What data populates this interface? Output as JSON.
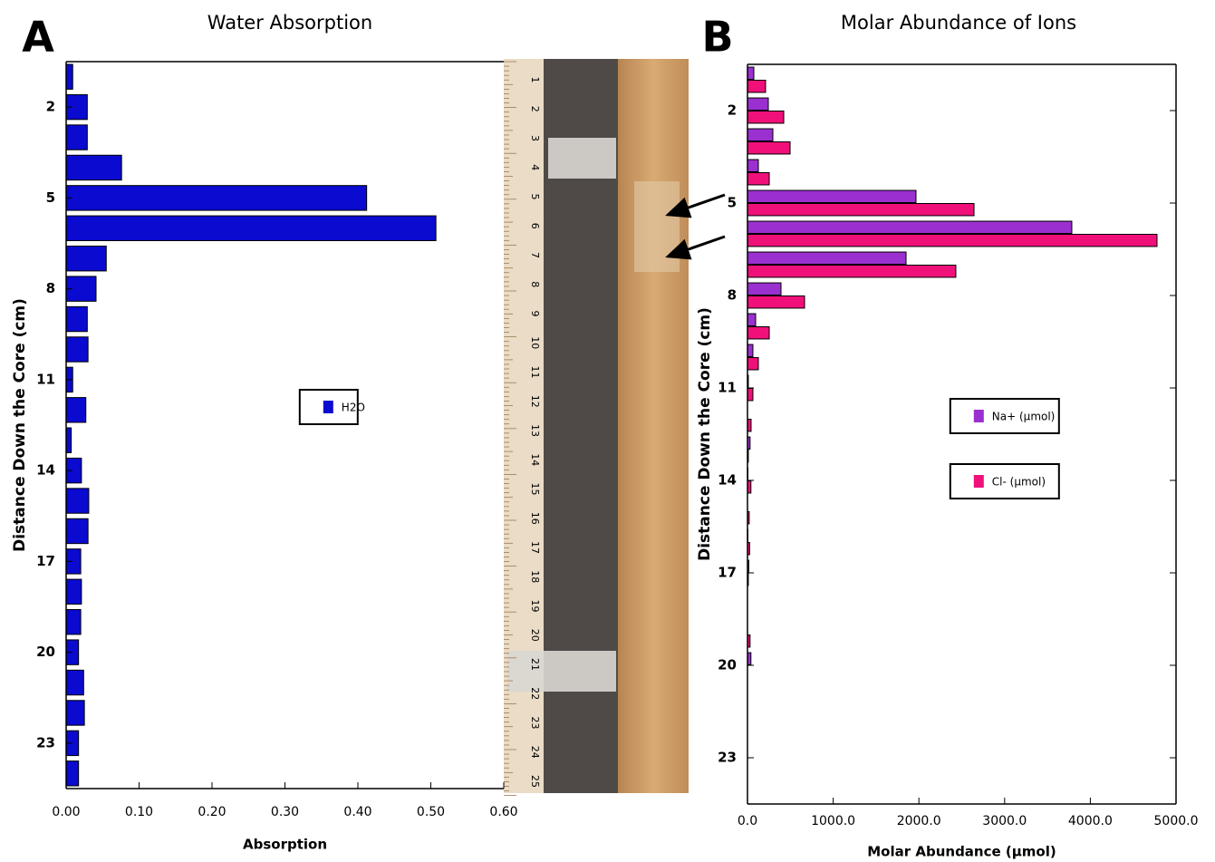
{
  "chart_data": [
    {
      "type": "barh",
      "panel_label": "A",
      "title": "Water Absorption",
      "x_label": "Absorption",
      "y_label": "Distance Down the Core (cm)",
      "y": [
        1,
        2,
        3,
        4,
        5,
        6,
        7,
        8,
        9,
        10,
        11,
        12,
        13,
        14,
        15,
        16,
        17,
        18,
        19,
        20,
        21,
        22,
        23,
        24
      ],
      "series": [
        {
          "name": "H2O",
          "color": "#0a0ad0",
          "values": [
            0.009,
            0.029,
            0.029,
            0.076,
            0.412,
            0.507,
            0.055,
            0.041,
            0.029,
            0.03,
            0.009,
            0.027,
            0.007,
            0.021,
            0.031,
            0.03,
            0.02,
            0.021,
            0.02,
            0.017,
            0.024,
            0.025,
            0.017,
            0.017
          ]
        }
      ],
      "xlim": [
        0,
        0.6
      ],
      "xticks": [
        {
          "value": 0,
          "label": "0.00"
        },
        {
          "value": 0.1,
          "label": "0.10"
        },
        {
          "value": 0.2,
          "label": "0.20"
        },
        {
          "value": 0.3,
          "label": "0.30"
        },
        {
          "value": 0.4,
          "label": "0.40"
        },
        {
          "value": 0.5,
          "label": "0.50"
        },
        {
          "value": 0.6,
          "label": "0.60"
        }
      ],
      "ylim": [
        0.5,
        24.5
      ],
      "y_inverted": true,
      "yticks": [
        2,
        5,
        8,
        11,
        14,
        17,
        20,
        23
      ],
      "grid": false,
      "legend_position": "center"
    },
    {
      "type": "barh",
      "panel_label": "B",
      "title": "Molar Abundance of Ions",
      "x_label": "Molar Abundance (µmol)",
      "y_label": "Distance Down the Core (cm)",
      "y": [
        1,
        2,
        3,
        4,
        5,
        6,
        7,
        8,
        9,
        10,
        11,
        12,
        13,
        14,
        15,
        16,
        17,
        18,
        19,
        20,
        21,
        22,
        23,
        24
      ],
      "series": [
        {
          "name": "Na+ (µmol)",
          "color": "#9b30d0",
          "values": [
            74,
            243,
            296,
            127,
            1966,
            3784,
            1850,
            391,
            95,
            63,
            10,
            0,
            30,
            5,
            0,
            5,
            15,
            0,
            0,
            40,
            0,
            0,
            0,
            0
          ]
        },
        {
          "name": "Cl- (µmol)",
          "color": "#f0107a",
          "values": [
            211,
            423,
            497,
            254,
            2643,
            4778,
            2431,
            666,
            254,
            127,
            63,
            42,
            10,
            40,
            20,
            25,
            10,
            0,
            30,
            0,
            0,
            0,
            0,
            0
          ]
        }
      ],
      "xlim": [
        0,
        5000
      ],
      "xticks": [
        {
          "value": 0,
          "label": "0.0"
        },
        {
          "value": 1000,
          "label": "1000.0"
        },
        {
          "value": 2000,
          "label": "2000.0"
        },
        {
          "value": 3000,
          "label": "3000.0"
        },
        {
          "value": 4000,
          "label": "4000.0"
        },
        {
          "value": 5000,
          "label": "5000.0"
        }
      ],
      "ylim": [
        0.5,
        24.5
      ],
      "y_inverted": true,
      "yticks": [
        2,
        5,
        8,
        11,
        14,
        17,
        20,
        23
      ],
      "grid": false,
      "legend_position": "center"
    }
  ],
  "photo": {
    "ruler_labels": [
      1,
      2,
      3,
      4,
      5,
      6,
      7,
      8,
      9,
      10,
      11,
      12,
      13,
      14,
      15,
      16,
      17,
      18,
      19,
      20,
      21,
      22,
      23,
      24,
      25
    ]
  }
}
